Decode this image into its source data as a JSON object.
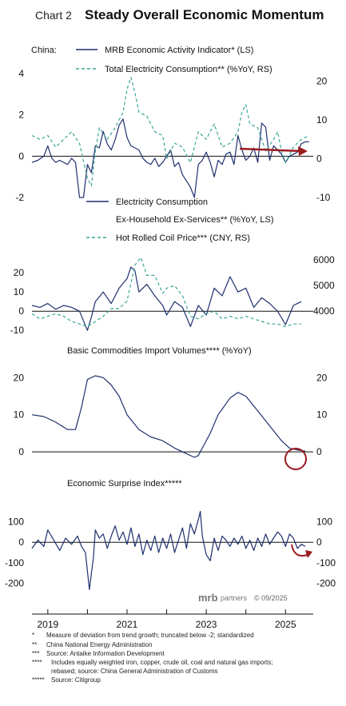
{
  "header": {
    "chart_label": "Chart 2",
    "title": "Steady Overall Economic Momentum"
  },
  "brand": {
    "name": "mrb",
    "suffix": "partners",
    "copyright": "© 09/2025"
  },
  "colors": {
    "navy": "#1f2f6e",
    "teal": "#3aa597",
    "arrow": "#9b1b1f",
    "axis": "#111111"
  },
  "footnotes": [
    {
      "mark": "*",
      "text": "Measure of deviation from trend growth; truncated below -2; standardized"
    },
    {
      "mark": "**",
      "text": "China National Energy Administration"
    },
    {
      "mark": "***",
      "text": "Source: Antaike Information Development"
    },
    {
      "mark": "****",
      "text": "Includes equally weighted iron, copper, crude oil, coal and natural gas imports;"
    },
    {
      "mark": "",
      "text": "rebased; source: China General Administration of Customs"
    },
    {
      "mark": "*****",
      "text": "Source: Citigroup"
    }
  ],
  "chart_data": [
    {
      "type": "line",
      "country_label": "China:",
      "series": [
        {
          "name": "MRB Economic Activity Indicator* (LS)",
          "axis": "left",
          "style": "solid",
          "color": "#1f2f6e",
          "x": [
            2018.6,
            2018.75,
            2018.9,
            2019.0,
            2019.1,
            2019.2,
            2019.3,
            2019.4,
            2019.5,
            2019.6,
            2019.7,
            2019.8,
            2019.9,
            2020.0,
            2020.1,
            2020.2,
            2020.3,
            2020.4,
            2020.5,
            2020.6,
            2020.7,
            2020.8,
            2020.9,
            2021.0,
            2021.1,
            2021.2,
            2021.3,
            2021.4,
            2021.5,
            2021.6,
            2021.7,
            2021.8,
            2021.9,
            2022.0,
            2022.1,
            2022.2,
            2022.3,
            2022.4,
            2022.5,
            2022.6,
            2022.7,
            2022.8,
            2022.9,
            2023.0,
            2023.1,
            2023.2,
            2023.3,
            2023.4,
            2023.5,
            2023.6,
            2023.7,
            2023.8,
            2023.9,
            2024.0,
            2024.1,
            2024.2,
            2024.3,
            2024.4,
            2024.5,
            2024.6,
            2024.7,
            2024.8,
            2024.9,
            2025.0,
            2025.1,
            2025.2,
            2025.3,
            2025.4,
            2025.5,
            2025.6
          ],
          "values": [
            -0.3,
            -0.2,
            0.0,
            0.5,
            -0.1,
            -0.3,
            -0.2,
            -0.3,
            -0.4,
            -0.1,
            -0.3,
            -2.0,
            -2.0,
            -0.4,
            -0.8,
            0.5,
            0.4,
            1.2,
            0.6,
            0.3,
            0.8,
            1.5,
            1.8,
            0.9,
            0.5,
            0.4,
            0.3,
            -0.1,
            -0.3,
            -0.4,
            -0.1,
            -0.5,
            -0.3,
            0.0,
            0.3,
            -0.5,
            -0.3,
            -0.9,
            -1.2,
            -1.5,
            -2.0,
            -0.4,
            -0.2,
            0.2,
            -0.3,
            -1.0,
            -0.2,
            -0.4,
            0.1,
            0.2,
            -0.4,
            1.0,
            0.3,
            -0.2,
            0.0,
            0.4,
            -0.3,
            1.6,
            1.4,
            -0.2,
            0.5,
            0.3,
            0.1,
            -0.3,
            0.0,
            0.1,
            0.2,
            0.6,
            0.7,
            0.7
          ]
        },
        {
          "name": "Total Electricity Consumption** (%YoY, RS)",
          "axis": "right",
          "style": "dashed",
          "color": "#3aa597",
          "x": [
            2018.6,
            2018.8,
            2019.0,
            2019.2,
            2019.4,
            2019.6,
            2019.8,
            2020.0,
            2020.1,
            2020.2,
            2020.3,
            2020.5,
            2020.7,
            2020.9,
            2021.0,
            2021.1,
            2021.2,
            2021.3,
            2021.5,
            2021.7,
            2021.9,
            2022.0,
            2022.2,
            2022.4,
            2022.6,
            2022.8,
            2023.0,
            2023.2,
            2023.4,
            2023.6,
            2023.8,
            2023.9,
            2024.0,
            2024.1,
            2024.3,
            2024.5,
            2024.7,
            2024.8,
            2024.9,
            2025.0,
            2025.2,
            2025.4,
            2025.6
          ],
          "values": [
            6,
            5,
            6,
            3,
            5,
            7,
            4,
            -5,
            -7,
            2,
            8,
            5,
            8,
            12,
            18,
            21,
            17,
            12,
            11,
            7,
            6,
            0,
            4,
            3,
            -1,
            7,
            5,
            9,
            3,
            4,
            7,
            12,
            14,
            9,
            8,
            2,
            5,
            7,
            2,
            -1,
            3,
            5,
            6
          ]
        }
      ],
      "left_axis": {
        "min": -2,
        "max": 4,
        "ticks": [
          4,
          2,
          0,
          -2
        ]
      },
      "right_axis": {
        "min": -10,
        "max": 22,
        "ticks": [
          20,
          10,
          0,
          -10
        ]
      },
      "annotation": "rising arrow (red) near the end of series"
    },
    {
      "type": "line",
      "series": [
        {
          "name": "Electricity Consumption Ex-Household Ex-Services** (%YoY, LS)",
          "name_lines": [
            "Electricity Consumption",
            "Ex-Household Ex-Services** (%YoY, LS)"
          ],
          "axis": "left",
          "style": "solid",
          "color": "#1f2f6e",
          "x": [
            2018.6,
            2018.8,
            2019.0,
            2019.2,
            2019.4,
            2019.6,
            2019.8,
            2020.0,
            2020.1,
            2020.2,
            2020.4,
            2020.6,
            2020.8,
            2021.0,
            2021.1,
            2021.2,
            2021.3,
            2021.5,
            2021.7,
            2021.9,
            2022.0,
            2022.2,
            2022.4,
            2022.6,
            2022.8,
            2023.0,
            2023.2,
            2023.4,
            2023.6,
            2023.8,
            2024.0,
            2024.2,
            2024.4,
            2024.6,
            2024.8,
            2025.0,
            2025.2,
            2025.4
          ],
          "values": [
            3,
            2,
            4,
            1,
            3,
            2,
            0,
            -10,
            -3,
            5,
            10,
            4,
            12,
            17,
            23,
            21,
            10,
            14,
            8,
            3,
            -2,
            5,
            2,
            -8,
            3,
            -2,
            12,
            8,
            18,
            10,
            12,
            2,
            7,
            4,
            0,
            -7,
            3,
            5
          ]
        },
        {
          "name": "Hot Rolled Coil Price*** (CNY, RS)",
          "axis": "right",
          "style": "dashed",
          "color": "#3aa597",
          "x": [
            2018.6,
            2018.8,
            2019.0,
            2019.2,
            2019.4,
            2019.6,
            2019.8,
            2020.0,
            2020.2,
            2020.4,
            2020.6,
            2020.8,
            2021.0,
            2021.1,
            2021.2,
            2021.35,
            2021.5,
            2021.7,
            2021.9,
            2022.0,
            2022.2,
            2022.4,
            2022.6,
            2022.8,
            2023.0,
            2023.2,
            2023.4,
            2023.6,
            2023.8,
            2024.0,
            2024.2,
            2024.4,
            2024.6,
            2024.8,
            2025.0,
            2025.2,
            2025.4
          ],
          "values": [
            3900,
            3700,
            3800,
            3900,
            3800,
            3600,
            3500,
            3400,
            3600,
            3800,
            4100,
            4100,
            4400,
            5100,
            5800,
            6100,
            5400,
            5400,
            4700,
            4900,
            5000,
            4600,
            3800,
            3700,
            3900,
            4000,
            3700,
            3800,
            3700,
            3800,
            3700,
            3600,
            3500,
            3500,
            3400,
            3500,
            3500
          ]
        }
      ],
      "left_axis": {
        "min": -12,
        "max": 28,
        "ticks": [
          20,
          10,
          0,
          -10
        ]
      },
      "right_axis": {
        "min": 3100,
        "max": 6100,
        "ticks": [
          6000,
          5000,
          4000
        ]
      }
    },
    {
      "type": "line",
      "title": "Basic Commodities Import Volumes**** (%YoY)",
      "series": [
        {
          "name": "Basic Commodities Import Volumes",
          "axis": "left",
          "style": "solid",
          "color": "#1f2f6e",
          "x": [
            2018.6,
            2018.9,
            2019.2,
            2019.5,
            2019.7,
            2019.85,
            2020.0,
            2020.2,
            2020.4,
            2020.6,
            2020.8,
            2021.0,
            2021.3,
            2021.6,
            2021.9,
            2022.2,
            2022.5,
            2022.7,
            2022.8,
            2022.9,
            2023.1,
            2023.3,
            2023.6,
            2023.8,
            2024.0,
            2024.3,
            2024.6,
            2024.9,
            2025.1,
            2025.3,
            2025.5
          ],
          "values": [
            10,
            9.5,
            8,
            6,
            6,
            12,
            19.5,
            20.5,
            20,
            18,
            15,
            10,
            6,
            4,
            3,
            1,
            -0.5,
            -1.5,
            -1,
            1,
            5,
            10,
            14.5,
            16,
            15,
            11,
            7,
            3,
            1,
            0.5,
            0.2
          ]
        }
      ],
      "left_axis": {
        "min": -3,
        "max": 22,
        "ticks": [
          20,
          10,
          0
        ]
      },
      "right_axis": {
        "min": -3,
        "max": 22,
        "ticks": [
          20,
          10,
          0
        ]
      },
      "annotation": "circle (red) highlighting latest reading near zero"
    },
    {
      "type": "line",
      "title": "Economic Surprise Index*****",
      "series": [
        {
          "name": "Economic Surprise Index",
          "axis": "left",
          "style": "solid",
          "color": "#1f2f6e",
          "x": [
            2018.6,
            2018.75,
            2018.9,
            2019.0,
            2019.15,
            2019.3,
            2019.45,
            2019.6,
            2019.75,
            2019.85,
            2019.95,
            2020.05,
            2020.1,
            2020.15,
            2020.2,
            2020.3,
            2020.4,
            2020.5,
            2020.6,
            2020.7,
            2020.8,
            2020.9,
            2021.0,
            2021.1,
            2021.2,
            2021.3,
            2021.4,
            2021.5,
            2021.6,
            2021.7,
            2021.8,
            2021.9,
            2022.0,
            2022.1,
            2022.2,
            2022.3,
            2022.4,
            2022.5,
            2022.6,
            2022.7,
            2022.8,
            2022.85,
            2022.9,
            2023.0,
            2023.1,
            2023.2,
            2023.3,
            2023.4,
            2023.5,
            2023.6,
            2023.7,
            2023.8,
            2023.9,
            2024.0,
            2024.1,
            2024.2,
            2024.3,
            2024.4,
            2024.5,
            2024.6,
            2024.7,
            2024.8,
            2024.9,
            2025.0,
            2025.1,
            2025.2,
            2025.3,
            2025.4,
            2025.5
          ],
          "values": [
            -30,
            10,
            -20,
            60,
            10,
            -40,
            20,
            -10,
            30,
            -20,
            -50,
            -230,
            -150,
            -80,
            60,
            20,
            40,
            -30,
            30,
            80,
            10,
            50,
            -10,
            70,
            -20,
            40,
            -60,
            10,
            -40,
            30,
            -50,
            20,
            -30,
            40,
            -50,
            10,
            70,
            -30,
            90,
            40,
            110,
            150,
            30,
            -60,
            -90,
            20,
            -40,
            30,
            10,
            -20,
            20,
            -10,
            30,
            -30,
            10,
            -40,
            20,
            -20,
            40,
            -10,
            20,
            50,
            30,
            -20,
            40,
            20,
            -30,
            -10,
            -20
          ]
        }
      ],
      "left_axis": {
        "min": -240,
        "max": 160,
        "ticks": [
          100,
          0,
          -100,
          -200
        ]
      },
      "right_axis": {
        "min": -240,
        "max": 160,
        "ticks": [
          100,
          0,
          -100,
          -200
        ]
      },
      "annotation": "curved arrow (red) near the end of series"
    }
  ],
  "x_axis": {
    "min": 2018.6,
    "max": 2025.7,
    "ticks": [
      "2019",
      "2021",
      "2023",
      "2025"
    ],
    "tick_values": [
      2019,
      2021,
      2023,
      2025
    ]
  }
}
